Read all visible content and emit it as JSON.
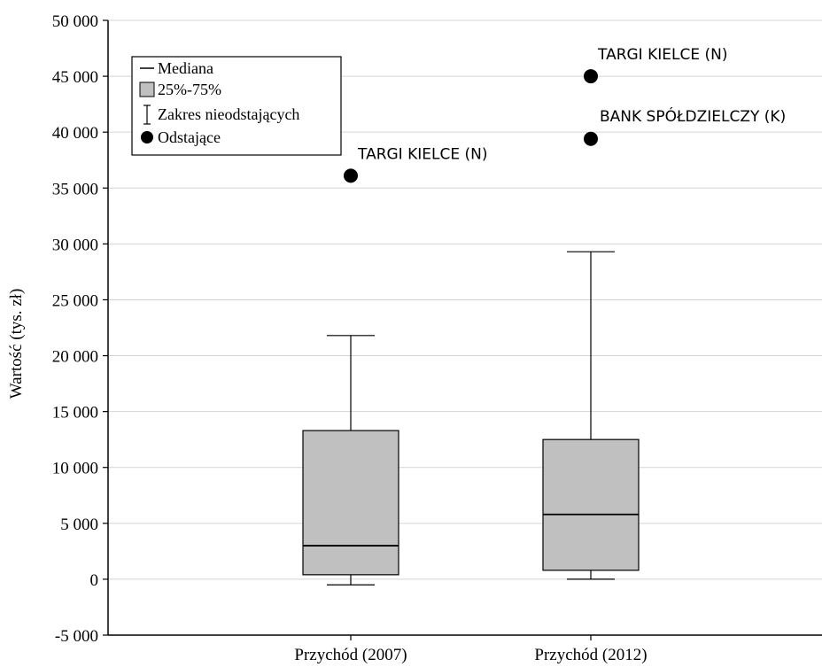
{
  "chart_data": {
    "type": "boxplot",
    "ylabel": "Wartość (tys. zł)",
    "ylim": [
      -5000,
      50000
    ],
    "yticks": [
      {
        "value": 50000,
        "label": "50 000"
      },
      {
        "value": 45000,
        "label": "45 000"
      },
      {
        "value": 40000,
        "label": "40 000"
      },
      {
        "value": 35000,
        "label": "35 000"
      },
      {
        "value": 30000,
        "label": "30 000"
      },
      {
        "value": 25000,
        "label": "25 000"
      },
      {
        "value": 20000,
        "label": "20 000"
      },
      {
        "value": 15000,
        "label": "15 000"
      },
      {
        "value": 10000,
        "label": "10 000"
      },
      {
        "value": 5000,
        "label": "5 000"
      },
      {
        "value": 0,
        "label": "0"
      },
      {
        "value": -5000,
        "label": "-5 000"
      }
    ],
    "grid": true,
    "legend_position": "top-left",
    "legend": {
      "median": "Mediana",
      "box": "25%-75%",
      "whisker": "Zakres nieodstających",
      "outlier": "Odstające"
    },
    "categories": [
      "Przychód (2007)",
      "Przychód (2012)"
    ],
    "boxes": [
      {
        "category": "Przychód (2007)",
        "whisker_low": -500,
        "q1": 400,
        "median": 3000,
        "q3": 13300,
        "whisker_high": 21800,
        "outliers": [
          {
            "value": 36100,
            "label": "TARGI KIELCE (N)"
          }
        ]
      },
      {
        "category": "Przychód (2012)",
        "whisker_low": 0,
        "q1": 800,
        "median": 5800,
        "q3": 12500,
        "whisker_high": 29300,
        "outliers": [
          {
            "value": 45000,
            "label": "TARGI KIELCE (N)"
          },
          {
            "value": 39400,
            "label": "BANK SPÓŁDZIELCZY (K)"
          }
        ]
      }
    ],
    "colors": {
      "box_fill": "#c0c0c0",
      "grid": "#d4d4d4",
      "ink": "#000000"
    }
  }
}
